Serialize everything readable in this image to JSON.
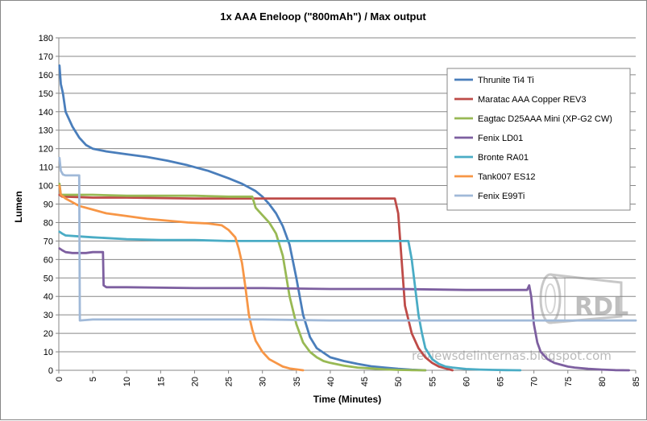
{
  "chart_data": {
    "type": "line",
    "title": "1x AAA Eneloop (\"800mAh\") / Max output",
    "xlabel": "Time (Minutes)",
    "ylabel": "Lumen",
    "xlim": [
      0,
      85
    ],
    "ylim": [
      0,
      180
    ],
    "x_ticks": [
      0,
      5,
      10,
      15,
      20,
      25,
      30,
      35,
      40,
      45,
      50,
      55,
      60,
      65,
      70,
      75,
      80,
      85
    ],
    "y_ticks": [
      0,
      10,
      20,
      30,
      40,
      50,
      60,
      70,
      80,
      90,
      100,
      110,
      120,
      130,
      140,
      150,
      160,
      170,
      180
    ],
    "grid": "horizontal",
    "legend_position": "top-right",
    "series": [
      {
        "name": "Thrunite Ti4 Ti",
        "color": "#4a7ebb",
        "x": [
          0.1,
          0.3,
          0.6,
          1,
          2,
          3,
          4,
          5,
          7,
          10,
          13,
          16,
          19,
          22,
          25,
          27,
          29,
          30,
          31,
          32,
          33,
          34,
          35,
          36,
          37,
          38,
          40,
          42,
          44,
          46,
          48,
          50,
          52,
          54
        ],
        "y": [
          165,
          155,
          150,
          140,
          132,
          126,
          122,
          120,
          118.5,
          117,
          115.5,
          113.5,
          111,
          108,
          104,
          101,
          97,
          94,
          90,
          85,
          78,
          68,
          50,
          30,
          18,
          12,
          7,
          5,
          3.5,
          2.2,
          1.5,
          0.8,
          0.3,
          0
        ]
      },
      {
        "name": "Maratac AAA Copper REV3",
        "color": "#be4b48",
        "x": [
          0.1,
          0.5,
          1,
          5,
          10,
          20,
          30,
          40,
          45,
          48,
          49.5,
          50,
          50.5,
          51,
          52,
          53,
          54,
          55,
          56,
          57,
          58
        ],
        "y": [
          95,
          94,
          94,
          93.5,
          93.5,
          93,
          93,
          93,
          93,
          93,
          93,
          85,
          60,
          35,
          20,
          12,
          7,
          4,
          2,
          1,
          0
        ]
      },
      {
        "name": "Eagtac D25AAA Mini (XP-G2 CW)",
        "color": "#98b954",
        "x": [
          0.1,
          0.3,
          1,
          5,
          10,
          15,
          20,
          25,
          28.5,
          29,
          29.5,
          30,
          31,
          32,
          33,
          34,
          35,
          36,
          37,
          38,
          39,
          40,
          42,
          44,
          46,
          48,
          50,
          52,
          54
        ],
        "y": [
          101,
          95,
          95,
          95,
          94.5,
          94.5,
          94.5,
          94,
          94,
          88,
          86,
          84,
          80,
          74,
          62,
          40,
          25,
          15,
          10,
          7,
          5,
          4,
          2.5,
          1.5,
          1,
          0.5,
          0.2,
          0.1,
          0
        ]
      },
      {
        "name": "Fenix LD01",
        "color": "#7d5fa0",
        "x": [
          0.1,
          0.5,
          1,
          2,
          3,
          4,
          5,
          6,
          6.5,
          6.6,
          7,
          10,
          20,
          30,
          40,
          50,
          60,
          65,
          68,
          69,
          69.3,
          69.6,
          70,
          70.5,
          71,
          72,
          73,
          74,
          75,
          76,
          78,
          80,
          82,
          84
        ],
        "y": [
          66,
          65,
          64,
          63.5,
          63.5,
          63.5,
          64,
          64,
          64,
          46,
          45,
          45,
          44.5,
          44.5,
          44,
          44,
          43.5,
          43.5,
          43.5,
          43.5,
          46,
          40,
          25,
          15,
          10,
          6,
          4,
          3,
          2,
          1.5,
          0.8,
          0.4,
          0.1,
          0
        ]
      },
      {
        "name": "Bronte RA01",
        "color": "#4aacc5",
        "x": [
          0.1,
          0.5,
          1,
          3,
          5,
          10,
          15,
          20,
          25,
          30,
          35,
          40,
          45,
          50,
          51.5,
          52,
          52.5,
          53,
          53.5,
          54,
          55,
          56,
          57,
          58,
          60,
          62,
          64,
          66,
          68
        ],
        "y": [
          75,
          74,
          73,
          72.5,
          72,
          71,
          70.5,
          70.5,
          70,
          70,
          70,
          70,
          70,
          70,
          70,
          60,
          45,
          30,
          20,
          12,
          6,
          3.5,
          2,
          1.5,
          0.7,
          0.4,
          0.2,
          0.1,
          0
        ]
      },
      {
        "name": "Tank007 ES12",
        "color": "#f79646",
        "x": [
          0.1,
          0.3,
          1,
          2,
          3,
          5,
          7,
          10,
          13,
          16,
          19,
          22,
          24,
          25,
          26,
          26.5,
          27,
          27.5,
          28,
          28.5,
          29,
          30,
          31,
          32,
          33,
          34,
          35,
          36
        ],
        "y": [
          100,
          95,
          93,
          91,
          89,
          87,
          85,
          83.5,
          82,
          81,
          80,
          79.5,
          78.5,
          76,
          72,
          66,
          58,
          45,
          30,
          22,
          16,
          10,
          6,
          4,
          2,
          1,
          0.5,
          0
        ]
      },
      {
        "name": "Fenix E99Ti",
        "color": "#a0b9d8",
        "x": [
          0.1,
          0.3,
          0.6,
          1,
          2,
          2.9,
          3,
          3.1,
          5,
          10,
          20,
          30,
          40,
          50,
          60,
          70,
          75,
          80,
          85
        ],
        "y": [
          115,
          108,
          106,
          105.5,
          105.5,
          105.5,
          105.5,
          27,
          27.5,
          27.5,
          27.5,
          27.5,
          27,
          27,
          27,
          27,
          27,
          27,
          27
        ]
      }
    ]
  },
  "watermark": {
    "logo_text": "RDL",
    "site_text": "reviewsdelinternas.blogspot.com"
  }
}
